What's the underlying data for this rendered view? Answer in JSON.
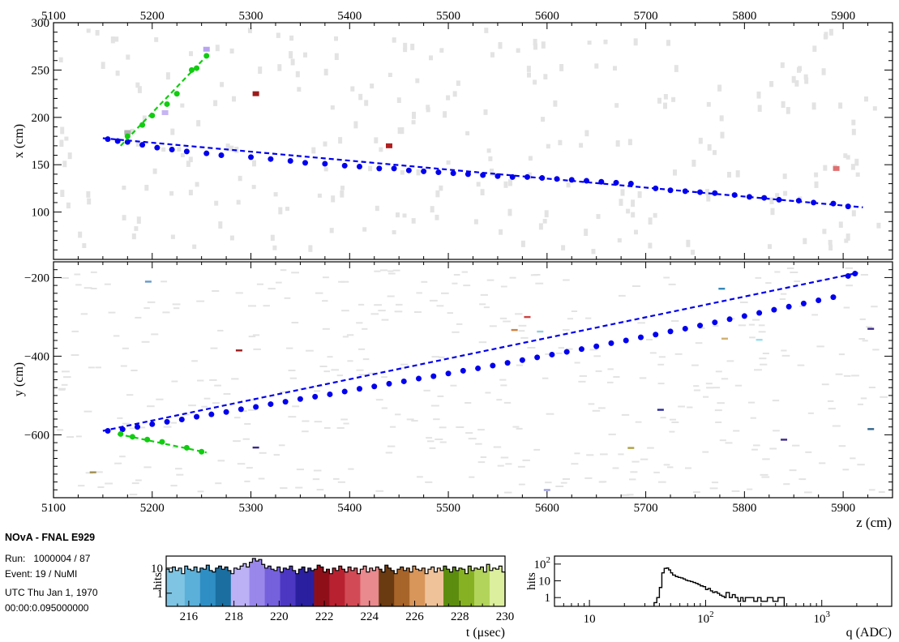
{
  "info": {
    "experiment": "NOvA - FNAL E929",
    "run_label": "Run:",
    "run_value": "1000004 / 87",
    "event_label": "Event:",
    "event_value": "19 / NuMI",
    "utc_line1": "UTC Thu Jan 1, 1970",
    "utc_line2": "00:00:0.095000000"
  },
  "colors": {
    "track_long": "#0000ee",
    "track_short": "#11cc11",
    "noise_hit": "#e3e3e3",
    "time_hist_line": "#000000",
    "charge_hist_line": "#000000"
  },
  "chart_data": [
    {
      "type": "scatter",
      "panel": "top view",
      "xlabel": "",
      "ylabel": "x (cm)",
      "xlim": [
        5100,
        5950
      ],
      "ylim": [
        50,
        300
      ],
      "x_ticks_top": [
        "5100",
        "5200",
        "5300",
        "5400",
        "5500",
        "5600",
        "5700",
        "5800",
        "5900"
      ],
      "y_ticks": [
        "100",
        "150",
        "200",
        "250",
        "300"
      ],
      "series": [
        {
          "role": "long track",
          "color": "#0000ee",
          "points": [
            [
              5155,
              177
            ],
            [
              5165,
              175
            ],
            [
              5175,
              174
            ],
            [
              5190,
              171
            ],
            [
              5205,
              168
            ],
            [
              5220,
              166
            ],
            [
              5235,
              164
            ],
            [
              5255,
              162
            ],
            [
              5270,
              160
            ],
            [
              5300,
              158
            ],
            [
              5320,
              156
            ],
            [
              5340,
              154
            ],
            [
              5355,
              152
            ],
            [
              5375,
              151
            ],
            [
              5395,
              149
            ],
            [
              5410,
              148
            ],
            [
              5430,
              146
            ],
            [
              5445,
              146
            ],
            [
              5460,
              144
            ],
            [
              5475,
              143
            ],
            [
              5490,
              142
            ],
            [
              5505,
              141
            ],
            [
              5520,
              140
            ],
            [
              5535,
              139
            ],
            [
              5550,
              138
            ],
            [
              5565,
              137
            ],
            [
              5580,
              137
            ],
            [
              5595,
              136
            ],
            [
              5610,
              135
            ],
            [
              5625,
              134
            ],
            [
              5640,
              133
            ],
            [
              5655,
              132
            ],
            [
              5670,
              131
            ],
            [
              5685,
              130
            ],
            [
              5710,
              125
            ],
            [
              5725,
              123
            ],
            [
              5740,
              122
            ],
            [
              5755,
              121
            ],
            [
              5770,
              120
            ],
            [
              5790,
              118
            ],
            [
              5805,
              116
            ],
            [
              5820,
              115
            ],
            [
              5835,
              113
            ],
            [
              5855,
              112
            ],
            [
              5870,
              110
            ],
            [
              5890,
              109
            ],
            [
              5905,
              106
            ]
          ],
          "fit": [
            [
              5150,
              178
            ],
            [
              5920,
              105
            ]
          ]
        },
        {
          "role": "short track",
          "color": "#11cc11",
          "points": [
            [
              5175,
              180
            ],
            [
              5190,
              192
            ],
            [
              5200,
              202
            ],
            [
              5215,
              214
            ],
            [
              5225,
              225
            ],
            [
              5240,
              250
            ],
            [
              5245,
              252
            ],
            [
              5255,
              265
            ]
          ],
          "fit": [
            [
              5168,
              170
            ],
            [
              5258,
              268
            ]
          ]
        }
      ],
      "colored_hits": [
        {
          "z": 5305,
          "x": 225,
          "color": "#9b1b1b"
        },
        {
          "z": 5440,
          "x": 170,
          "color": "#b02020"
        },
        {
          "z": 5893,
          "x": 146,
          "color": "#e07070"
        },
        {
          "z": 5255,
          "x": 272,
          "color": "#b9a3f0"
        },
        {
          "z": 5213,
          "x": 205,
          "color": "#c6b4f3"
        },
        {
          "z": 5175,
          "x": 184,
          "color": "#b0b0b0"
        }
      ]
    },
    {
      "type": "scatter",
      "panel": "side view",
      "xlabel": "z (cm)",
      "ylabel": "y (cm)",
      "xlim": [
        5100,
        5950
      ],
      "ylim": [
        -760,
        -160
      ],
      "x_ticks": [
        "5100",
        "5200",
        "5300",
        "5400",
        "5500",
        "5600",
        "5700",
        "5800",
        "5900"
      ],
      "y_ticks": [
        "−600",
        "−400",
        "−200"
      ],
      "series": [
        {
          "role": "long track",
          "color": "#0000ee",
          "points": [
            [
              5155,
              -590
            ],
            [
              5170,
              -586
            ],
            [
              5185,
              -580
            ],
            [
              5200,
              -573
            ],
            [
              5215,
              -567
            ],
            [
              5230,
              -561
            ],
            [
              5245,
              -554
            ],
            [
              5260,
              -548
            ],
            [
              5275,
              -542
            ],
            [
              5290,
              -535
            ],
            [
              5305,
              -529
            ],
            [
              5320,
              -522
            ],
            [
              5335,
              -516
            ],
            [
              5350,
              -509
            ],
            [
              5365,
              -503
            ],
            [
              5380,
              -497
            ],
            [
              5395,
              -490
            ],
            [
              5410,
              -483
            ],
            [
              5425,
              -477
            ],
            [
              5440,
              -470
            ],
            [
              5455,
              -464
            ],
            [
              5470,
              -457
            ],
            [
              5485,
              -451
            ],
            [
              5500,
              -444
            ],
            [
              5515,
              -437
            ],
            [
              5530,
              -431
            ],
            [
              5545,
              -424
            ],
            [
              5560,
              -417
            ],
            [
              5575,
              -410
            ],
            [
              5590,
              -403
            ],
            [
              5605,
              -396
            ],
            [
              5620,
              -389
            ],
            [
              5635,
              -382
            ],
            [
              5650,
              -375
            ],
            [
              5665,
              -367
            ],
            [
              5680,
              -360
            ],
            [
              5695,
              -352
            ],
            [
              5710,
              -345
            ],
            [
              5725,
              -337
            ],
            [
              5740,
              -330
            ],
            [
              5755,
              -322
            ],
            [
              5770,
              -314
            ],
            [
              5785,
              -306
            ],
            [
              5800,
              -298
            ],
            [
              5815,
              -290
            ],
            [
              5830,
              -282
            ],
            [
              5845,
              -274
            ],
            [
              5860,
              -266
            ],
            [
              5875,
              -258
            ],
            [
              5890,
              -250
            ],
            [
              5905,
              -196
            ],
            [
              5912,
              -190
            ]
          ],
          "fit": [
            [
              5150,
              -590
            ],
            [
              5915,
              -188
            ]
          ]
        },
        {
          "role": "short track",
          "color": "#11cc11",
          "points": [
            [
              5168,
              -598
            ],
            [
              5180,
              -605
            ],
            [
              5195,
              -612
            ],
            [
              5210,
              -618
            ],
            [
              5235,
              -633
            ],
            [
              5250,
              -643
            ]
          ],
          "fit": [
            [
              5165,
              -598
            ],
            [
              5255,
              -645
            ]
          ]
        }
      ],
      "colored_hits": [
        {
          "z": 5196,
          "y": -210,
          "color": "#6699cc"
        },
        {
          "z": 5288,
          "y": -385,
          "color": "#9b1b1b"
        },
        {
          "z": 5305,
          "y": -632,
          "color": "#3b2a8a"
        },
        {
          "z": 5580,
          "y": -300,
          "color": "#d04040"
        },
        {
          "z": 5567,
          "y": -333,
          "color": "#d08040"
        },
        {
          "z": 5593,
          "y": -337,
          "color": "#99ccdd"
        },
        {
          "z": 5685,
          "y": -633,
          "color": "#b0a040"
        },
        {
          "z": 5715,
          "y": -536,
          "color": "#2a2a9a"
        },
        {
          "z": 5777,
          "y": -228,
          "color": "#3388bb"
        },
        {
          "z": 5780,
          "y": -355,
          "color": "#d0b070"
        },
        {
          "z": 5840,
          "y": -612,
          "color": "#3b2a8a"
        },
        {
          "z": 5815,
          "y": -358,
          "color": "#99ddee"
        },
        {
          "z": 5928,
          "y": -330,
          "color": "#3b2a8a"
        },
        {
          "z": 5928,
          "y": -585,
          "color": "#33668a"
        },
        {
          "z": 5140,
          "y": -695,
          "color": "#a09050"
        },
        {
          "z": 5600,
          "y": -740,
          "color": "#9999dd"
        }
      ]
    },
    {
      "type": "bar",
      "panel": "time histogram",
      "xlabel": "t (μsec)",
      "ylabel": "hits",
      "xlim": [
        215,
        230
      ],
      "log_y": true,
      "ylim": [
        0.3,
        30
      ],
      "x_ticks": [
        "216",
        "218",
        "220",
        "222",
        "224",
        "226",
        "228",
        "230"
      ],
      "y_ticks": [
        "1",
        "10"
      ],
      "color_scale": [
        "#7fc5e3",
        "#5bb0d9",
        "#2f8fc4",
        "#1a6ea0",
        "#bcb1f5",
        "#9a87ea",
        "#7561dc",
        "#4b37c1",
        "#2a1f9e",
        "#8f0f19",
        "#b82230",
        "#d24a55",
        "#e88a8e",
        "#6a3a10",
        "#a7652a",
        "#d8965a",
        "#efc29a",
        "#5d8d0e",
        "#86b123",
        "#b3d45b",
        "#dcef9e"
      ],
      "values": [
        9,
        7,
        11,
        8,
        10,
        6,
        12,
        9,
        8,
        11,
        7,
        10,
        9,
        13,
        8,
        7,
        10,
        12,
        9,
        11,
        8,
        6,
        10,
        9,
        12,
        15,
        11,
        17,
        24,
        19,
        22,
        14,
        10,
        12,
        9,
        8,
        11,
        7,
        10,
        9,
        12,
        8,
        6,
        9,
        11,
        7,
        10,
        8,
        9,
        13,
        11,
        7,
        9,
        6,
        10,
        8,
        12,
        9,
        7,
        11,
        8,
        10,
        6,
        9,
        12,
        7,
        10,
        8,
        11,
        9,
        7,
        13,
        10,
        8,
        6,
        9,
        11,
        8,
        10,
        7,
        12,
        9,
        8,
        10,
        6,
        9,
        11,
        7,
        10,
        8,
        12,
        9,
        7,
        11,
        8,
        10,
        9,
        6,
        12,
        8,
        10,
        9,
        11,
        7,
        14,
        8,
        10,
        9,
        12,
        7
      ]
    },
    {
      "type": "line",
      "panel": "charge histogram",
      "xlabel": "q (ADC)",
      "ylabel": "hits",
      "log_x": true,
      "log_y": true,
      "xlim": [
        5,
        4000
      ],
      "ylim": [
        0.3,
        300
      ],
      "x_ticks": [
        "10",
        "10^2",
        "10^3"
      ],
      "y_ticks": [
        "1",
        "10",
        "10^2"
      ],
      "x": [
        36,
        38,
        40,
        42,
        44,
        46,
        48,
        50,
        52,
        55,
        58,
        61,
        64,
        67,
        70,
        74,
        78,
        82,
        86,
        90,
        95,
        100,
        105,
        110,
        115,
        120,
        126,
        132,
        138,
        145,
        150,
        160,
        170,
        180,
        190,
        200,
        210,
        220,
        240,
        260,
        280,
        300,
        340,
        380,
        420,
        460
      ],
      "y": [
        0.5,
        1,
        4,
        30,
        55,
        58,
        45,
        30,
        22,
        18,
        16,
        15,
        13,
        11,
        10,
        9,
        8,
        7,
        6,
        5,
        4.5,
        3,
        3.5,
        2.5,
        2,
        2.2,
        1.8,
        1.4,
        1.2,
        1,
        2,
        1,
        1.5,
        1,
        0.6,
        1,
        0.6,
        1,
        1,
        0.6,
        1,
        0.6,
        1,
        0.6,
        1,
        1
      ]
    }
  ]
}
